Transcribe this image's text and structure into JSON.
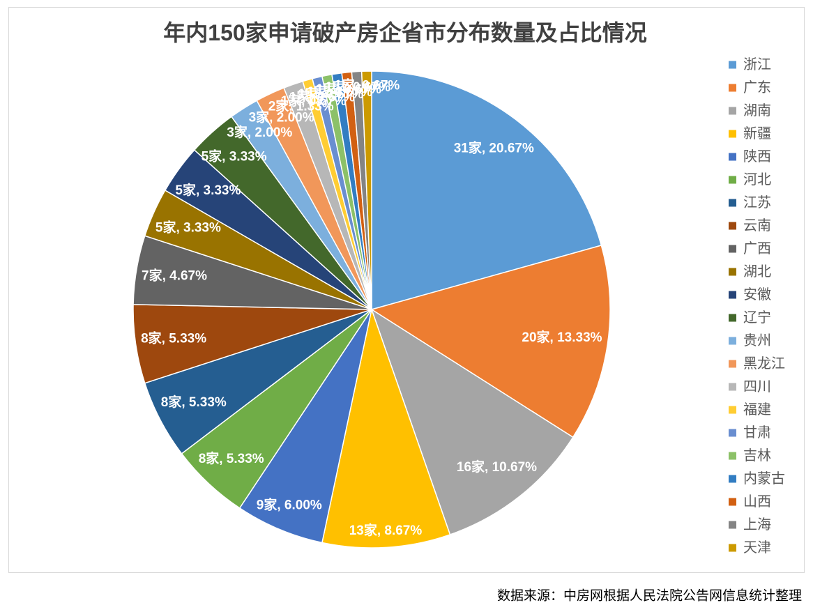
{
  "chart_data": {
    "type": "pie",
    "title": "年内150家申请破产房企省市分布数量及占比情况",
    "categories": [
      "浙江",
      "广东",
      "湖南",
      "新疆",
      "陕西",
      "河北",
      "江苏",
      "云南",
      "广西",
      "湖北",
      "安徽",
      "辽宁",
      "贵州",
      "黑龙江",
      "四川",
      "福建",
      "甘肃",
      "吉林",
      "内蒙古",
      "山西",
      "上海",
      "天津"
    ],
    "values": [
      31,
      20,
      16,
      13,
      9,
      8,
      8,
      8,
      7,
      5,
      5,
      5,
      3,
      3,
      2,
      1,
      1,
      1,
      1,
      1,
      1,
      1
    ],
    "percentages": [
      20.67,
      13.33,
      10.67,
      8.67,
      6.0,
      5.33,
      5.33,
      5.33,
      4.67,
      3.33,
      3.33,
      3.33,
      2.0,
      2.0,
      1.33,
      0.67,
      0.67,
      0.67,
      0.67,
      0.67,
      0.67,
      0.67
    ],
    "data_labels": [
      "31家, 20.67%",
      "20家, 13.33%",
      "16家, 10.67%",
      "13家, 8.67%",
      "9家, 6.00%",
      "8家, 5.33%",
      "8家, 5.33%",
      "8家, 5.33%",
      "7家, 4.67%",
      "5家, 3.33%",
      "5家, 3.33%",
      "5家, 3.33%",
      "3家, 2.00%",
      "3家, 2.00%",
      "2家, 1.33%",
      "1家, 0.67%",
      "1家, 0.67%",
      "1家, 0.67%",
      "1家, 0.67%",
      "1家, 0.67%",
      "1家, 0.67%",
      "1家, 0.67%"
    ],
    "colors": [
      "#5B9BD5",
      "#ED7D31",
      "#A5A5A5",
      "#FFC000",
      "#4472C4",
      "#70AD47",
      "#255E91",
      "#9E480E",
      "#636363",
      "#997300",
      "#264478",
      "#43682B",
      "#7CAFDD",
      "#F1975A",
      "#B7B7B7",
      "#FFCD33",
      "#698ED0",
      "#8CC168",
      "#327DC2",
      "#D26012",
      "#848484",
      "#CC9A00"
    ],
    "legend_position": "right"
  },
  "source_note": "数据来源：中房网根据人民法院公告网信息统计整理"
}
